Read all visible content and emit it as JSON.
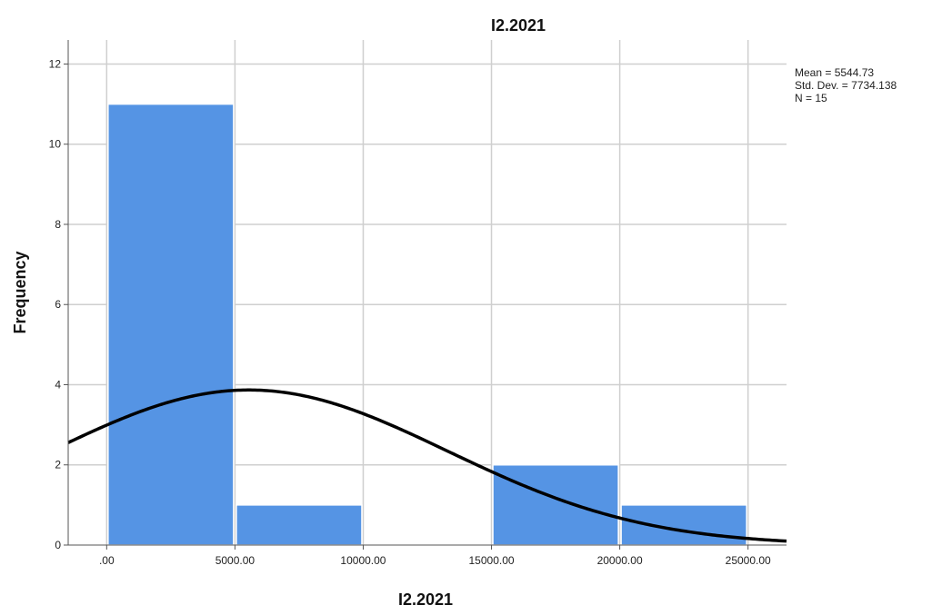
{
  "chart_data": {
    "type": "histogram",
    "title": "I2.2021",
    "xlabel": "I2.2021",
    "ylabel": "Frequency",
    "xlim": [
      -1500,
      26500
    ],
    "ylim": [
      0,
      12.6
    ],
    "x_ticks": [
      0,
      5000,
      10000,
      15000,
      20000,
      25000
    ],
    "x_tick_labels": [
      ".00",
      "5000.00",
      "10000.00",
      "15000.00",
      "20000.00",
      "25000.00"
    ],
    "y_ticks": [
      0,
      2,
      4,
      6,
      8,
      10,
      12
    ],
    "y_tick_labels": [
      "0",
      "2",
      "4",
      "6",
      "8",
      "10",
      "12"
    ],
    "grid": true,
    "bins": [
      {
        "start": 0,
        "end": 5000,
        "count": 11
      },
      {
        "start": 5000,
        "end": 10000,
        "count": 1
      },
      {
        "start": 10000,
        "end": 15000,
        "count": 0
      },
      {
        "start": 15000,
        "end": 20000,
        "count": 2
      },
      {
        "start": 20000,
        "end": 25000,
        "count": 1
      }
    ],
    "normal_curve": {
      "mean": 5544.73,
      "std_dev": 7734.138,
      "n": 15,
      "bin_width": 5000
    },
    "stats_lines": [
      "Mean = 5544.73",
      "Std. Dev. = 7734.138",
      "N = 15"
    ],
    "colors": {
      "bar": "#5594E4",
      "bar_edge": "#ffffff",
      "grid": "#cfcfcf",
      "curve": "#000000",
      "axis": "#555555"
    }
  }
}
